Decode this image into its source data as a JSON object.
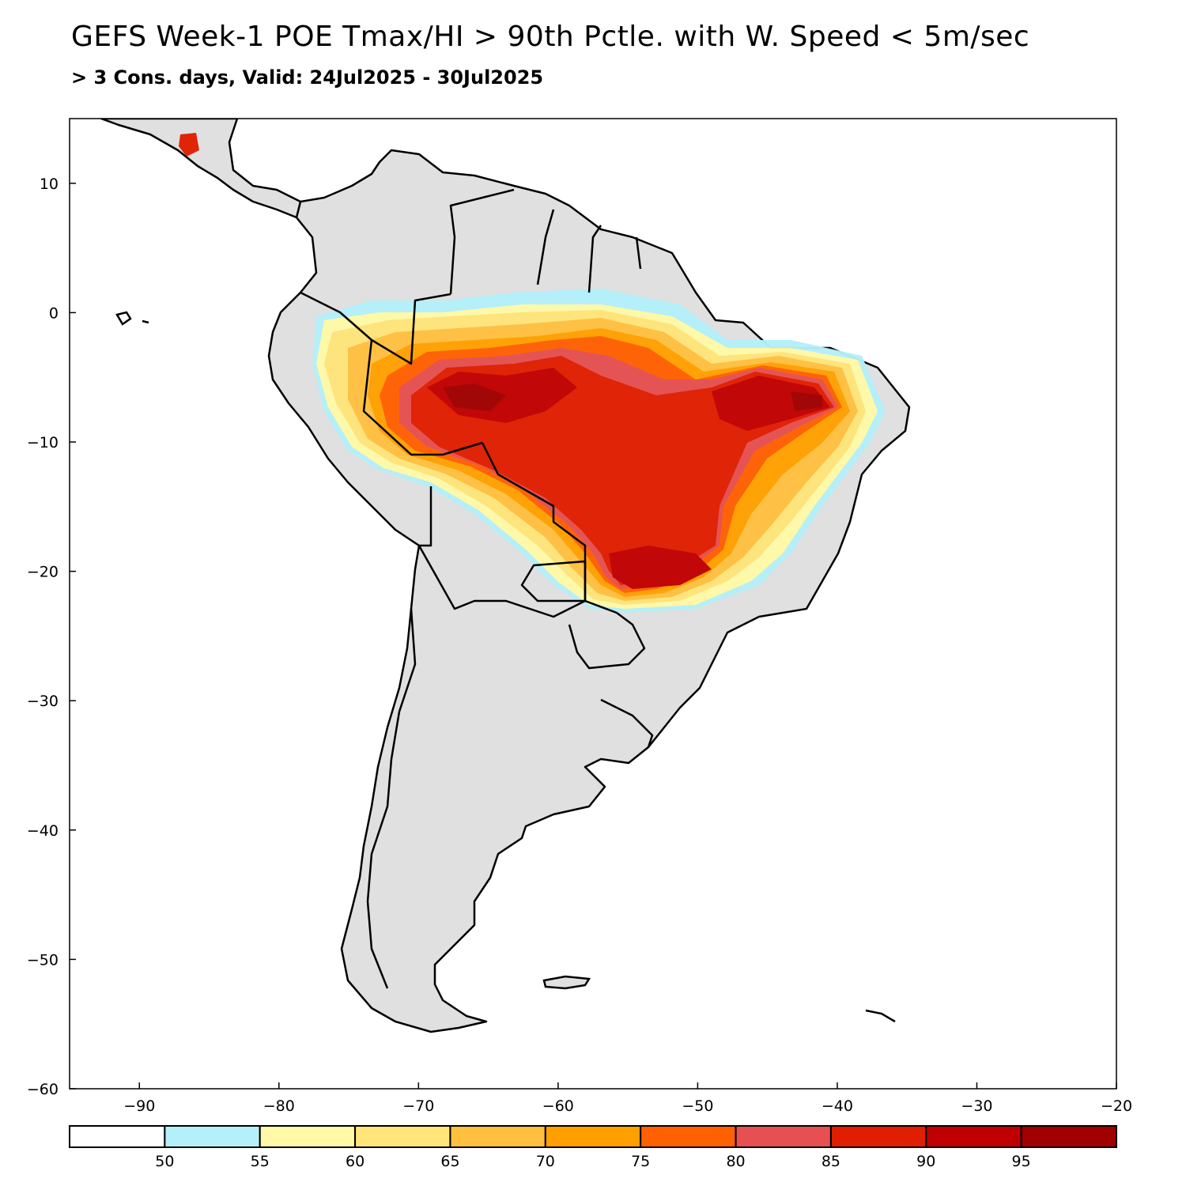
{
  "title": "GEFS Week-1 POE Tmax/HI > 90th Pctle. with W. Speed < 5m/sec",
  "subtitle": "> 3 Cons. days, Valid: 24Jul2025 - 30Jul2025",
  "map": {
    "projection": "lat-lon",
    "lon_range": [
      -95,
      -20
    ],
    "lat_range": [
      -60,
      15
    ],
    "land_color": "#e0e0e0",
    "ocean_color": "#ffffff",
    "border_color": "#000000",
    "x_ticks": [
      "−90",
      "−80",
      "−70",
      "−60",
      "−50",
      "−40",
      "−30",
      "−20"
    ],
    "y_ticks": [
      "10",
      "0",
      "−10",
      "−20",
      "−30",
      "−40",
      "−50",
      "−60"
    ]
  },
  "colorbar": {
    "labels": [
      "50",
      "55",
      "60",
      "65",
      "70",
      "75",
      "80",
      "85",
      "90",
      "95"
    ],
    "colors": [
      "#ffffff",
      "#b4f0fa",
      "#fff9a8",
      "#ffe57a",
      "#ffc040",
      "#ffa000",
      "#ff6000",
      "#e65050",
      "#e01e00",
      "#c00000",
      "#a00000"
    ]
  }
}
